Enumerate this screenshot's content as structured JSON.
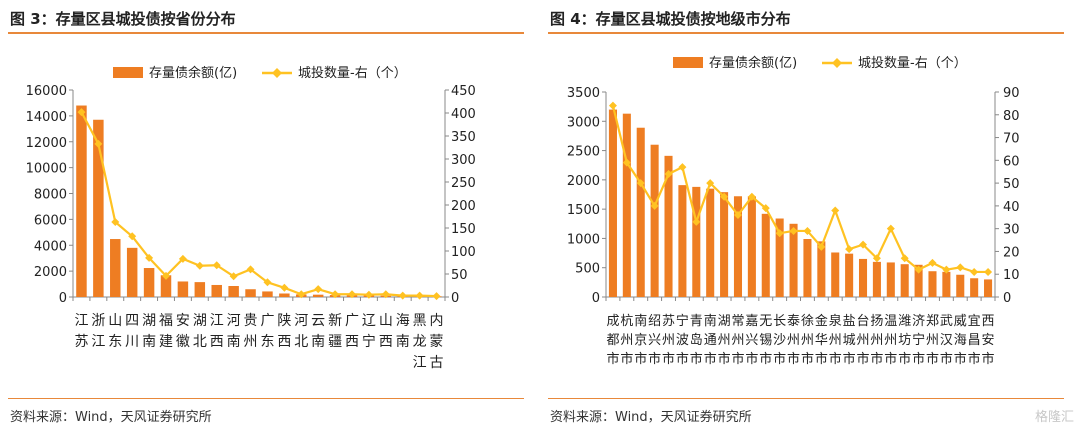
{
  "source_text": "资料来源：Wind，天风证券研究所",
  "watermark_text": "格隆汇",
  "colors": {
    "bar": "#ee7d22",
    "line": "#ffc222",
    "axis": "#888888",
    "text": "#222222",
    "accent": "#e8883a"
  },
  "chart_data": [
    {
      "title": "图 3：存量区县城投债按省份分布",
      "type": "bar+line",
      "legend": {
        "bar": "存量债余额(亿)",
        "line": "城投数量-右（个）",
        "position": "top"
      },
      "categories": [
        "江苏",
        "浙江",
        "山东",
        "四川",
        "湖南",
        "福建",
        "安徽",
        "湖北",
        "江西",
        "河南",
        "贵州",
        "广东",
        "陕西",
        "河北",
        "云南",
        "新疆",
        "广西",
        "辽宁",
        "山西",
        "海南",
        "黑龙江",
        "内蒙古"
      ],
      "values": [
        14800,
        13700,
        4480,
        3800,
        2240,
        1680,
        1200,
        1150,
        930,
        850,
        600,
        430,
        270,
        200,
        180,
        150,
        140,
        120,
        100,
        80,
        60,
        50
      ],
      "line_values": [
        402,
        333,
        163,
        132,
        85,
        46,
        83,
        68,
        69,
        45,
        60,
        32,
        20,
        6,
        17,
        6,
        6,
        5,
        6,
        3,
        3,
        2
      ],
      "ylim": [
        0,
        16000
      ],
      "yticks": [
        0,
        2000,
        4000,
        6000,
        8000,
        10000,
        12000,
        14000,
        16000
      ],
      "y2lim": [
        0,
        450
      ],
      "y2ticks": [
        0,
        50,
        100,
        150,
        200,
        250,
        300,
        350,
        400,
        450
      ]
    },
    {
      "title": "图 4：存量区县城投债按地级市分布",
      "type": "bar+line",
      "legend": {
        "bar": "存量债余额(亿)",
        "line": "城投数量-右（个）",
        "position": "top"
      },
      "categories": [
        "成都市",
        "杭州市",
        "南京市",
        "绍兴市",
        "苏州市",
        "宁波市",
        "青岛市",
        "南通市",
        "湖州市",
        "常州市",
        "嘉兴市",
        "无锡市",
        "长沙市",
        "泰州市",
        "徐州市",
        "金华市",
        "泉州市",
        "盐城市",
        "台州市",
        "扬州市",
        "温州市",
        "潍坊市",
        "济宁市",
        "郑州市",
        "武汉市",
        "威海市",
        "宜昌市",
        "西安市"
      ],
      "values": [
        3200,
        3130,
        2890,
        2600,
        2410,
        1910,
        1880,
        1850,
        1790,
        1720,
        1720,
        1420,
        1340,
        1250,
        990,
        950,
        760,
        740,
        650,
        600,
        590,
        560,
        550,
        440,
        430,
        380,
        320,
        300
      ],
      "line_values": [
        84,
        59,
        50,
        40,
        54,
        57,
        33,
        50,
        44,
        36,
        44,
        39,
        28,
        29,
        29,
        22,
        38,
        21,
        23,
        17,
        30,
        17,
        12,
        15,
        12,
        13,
        11,
        11
      ],
      "ylim": [
        0,
        3500
      ],
      "yticks": [
        0,
        500,
        1000,
        1500,
        2000,
        2500,
        3000,
        3500
      ],
      "y2lim": [
        0,
        90
      ],
      "y2ticks": [
        0,
        10,
        20,
        30,
        40,
        50,
        60,
        70,
        80,
        90
      ]
    }
  ]
}
